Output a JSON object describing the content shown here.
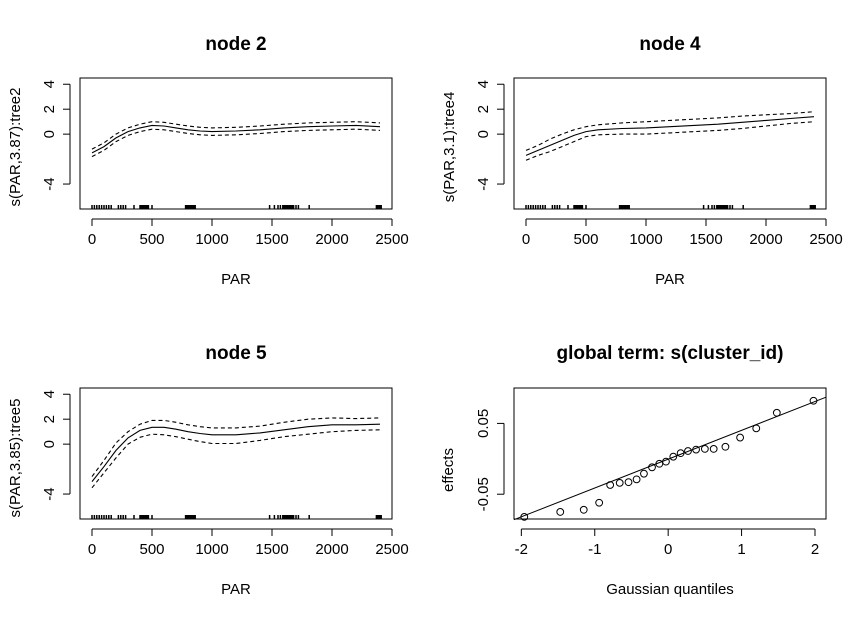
{
  "chart_data": [
    {
      "type": "line",
      "title": "node 2",
      "xlabel": "PAR",
      "ylabel": "s(PAR,3.87):tree2",
      "xlim": [
        -100,
        2500
      ],
      "ylim": [
        -6,
        4.5
      ],
      "xticks": [
        "0",
        "500",
        "1000",
        "1500",
        "2000",
        "2500"
      ],
      "yticks": [
        "-4",
        "0",
        "2",
        "4"
      ],
      "grid": false,
      "series": [
        {
          "style": "solid",
          "x": [
            0,
            100,
            200,
            300,
            400,
            500,
            600,
            700,
            800,
            900,
            1000,
            1200,
            1400,
            1600,
            1800,
            2000,
            2200,
            2400
          ],
          "values": [
            -1.5,
            -1.0,
            -0.3,
            0.2,
            0.5,
            0.7,
            0.65,
            0.5,
            0.35,
            0.25,
            0.2,
            0.25,
            0.35,
            0.5,
            0.6,
            0.65,
            0.7,
            0.6
          ]
        },
        {
          "style": "dashed",
          "x": [
            0,
            100,
            200,
            300,
            400,
            500,
            600,
            700,
            800,
            900,
            1000,
            1200,
            1400,
            1600,
            1800,
            2000,
            2200,
            2400
          ],
          "values": [
            -1.2,
            -0.7,
            0.0,
            0.5,
            0.8,
            1.0,
            0.95,
            0.8,
            0.65,
            0.55,
            0.5,
            0.55,
            0.65,
            0.8,
            0.9,
            0.95,
            1.0,
            0.9
          ]
        },
        {
          "style": "dashed",
          "x": [
            0,
            100,
            200,
            300,
            400,
            500,
            600,
            700,
            800,
            900,
            1000,
            1200,
            1400,
            1600,
            1800,
            2000,
            2200,
            2400
          ],
          "values": [
            -1.8,
            -1.3,
            -0.6,
            -0.1,
            0.2,
            0.4,
            0.35,
            0.2,
            0.05,
            -0.05,
            -0.1,
            -0.05,
            0.05,
            0.2,
            0.3,
            0.35,
            0.4,
            0.3
          ]
        }
      ],
      "rug": [
        0,
        20,
        40,
        60,
        80,
        100,
        120,
        140,
        160,
        220,
        240,
        260,
        280,
        350,
        400,
        410,
        420,
        430,
        440,
        450,
        460,
        470,
        500,
        780,
        790,
        800,
        810,
        820,
        830,
        840,
        850,
        860,
        1480,
        1520,
        1550,
        1570,
        1590,
        1600,
        1610,
        1620,
        1630,
        1640,
        1650,
        1660,
        1670,
        1680,
        1700,
        1720,
        1810,
        2370,
        2380,
        2390,
        2400,
        2410
      ]
    },
    {
      "type": "line",
      "title": "node 4",
      "xlabel": "PAR",
      "ylabel": "s(PAR,3.1):tree4",
      "xlim": [
        -100,
        2500
      ],
      "ylim": [
        -6,
        4.5
      ],
      "xticks": [
        "0",
        "500",
        "1000",
        "1500",
        "2000",
        "2500"
      ],
      "yticks": [
        "-4",
        "0",
        "2",
        "4"
      ],
      "grid": false,
      "series": [
        {
          "style": "solid",
          "x": [
            0,
            100,
            200,
            300,
            400,
            500,
            600,
            800,
            1000,
            1200,
            1400,
            1600,
            1800,
            2000,
            2200,
            2400
          ],
          "values": [
            -1.7,
            -1.3,
            -0.9,
            -0.5,
            -0.1,
            0.2,
            0.35,
            0.45,
            0.5,
            0.6,
            0.7,
            0.8,
            0.95,
            1.1,
            1.25,
            1.4
          ]
        },
        {
          "style": "dashed",
          "x": [
            0,
            100,
            200,
            300,
            400,
            500,
            600,
            800,
            1000,
            1200,
            1400,
            1600,
            1800,
            2000,
            2200,
            2400
          ],
          "values": [
            -1.3,
            -0.9,
            -0.4,
            0.0,
            0.35,
            0.6,
            0.75,
            0.9,
            1.0,
            1.1,
            1.2,
            1.3,
            1.45,
            1.55,
            1.65,
            1.8
          ]
        },
        {
          "style": "dashed",
          "x": [
            0,
            100,
            200,
            300,
            400,
            500,
            600,
            800,
            1000,
            1200,
            1400,
            1600,
            1800,
            2000,
            2200,
            2400
          ],
          "values": [
            -2.1,
            -1.7,
            -1.4,
            -1.0,
            -0.6,
            -0.2,
            -0.05,
            0.0,
            0.0,
            0.1,
            0.2,
            0.3,
            0.45,
            0.65,
            0.85,
            1.0
          ]
        }
      ],
      "rug": [
        0,
        20,
        40,
        60,
        80,
        100,
        120,
        140,
        160,
        220,
        240,
        260,
        280,
        350,
        400,
        410,
        420,
        430,
        440,
        450,
        460,
        470,
        500,
        780,
        790,
        800,
        810,
        820,
        830,
        840,
        850,
        860,
        1480,
        1520,
        1550,
        1570,
        1590,
        1600,
        1610,
        1620,
        1630,
        1640,
        1650,
        1660,
        1670,
        1680,
        1700,
        1720,
        1810,
        2370,
        2380,
        2390,
        2400,
        2410
      ]
    },
    {
      "type": "line",
      "title": "node 5",
      "xlabel": "PAR",
      "ylabel": "s(PAR,3.85):tree5",
      "xlim": [
        -100,
        2500
      ],
      "ylim": [
        -6,
        4.5
      ],
      "xticks": [
        "0",
        "500",
        "1000",
        "1500",
        "2000",
        "2500"
      ],
      "yticks": [
        "-4",
        "0",
        "2",
        "4"
      ],
      "grid": false,
      "series": [
        {
          "style": "solid",
          "x": [
            0,
            100,
            200,
            300,
            400,
            500,
            600,
            700,
            800,
            900,
            1000,
            1200,
            1400,
            1600,
            1800,
            2000,
            2200,
            2400
          ],
          "values": [
            -3.0,
            -1.8,
            -0.5,
            0.5,
            1.1,
            1.35,
            1.35,
            1.2,
            1.0,
            0.85,
            0.75,
            0.75,
            0.9,
            1.15,
            1.4,
            1.55,
            1.55,
            1.6
          ]
        },
        {
          "style": "dashed",
          "x": [
            0,
            100,
            200,
            300,
            400,
            500,
            600,
            700,
            800,
            900,
            1000,
            1200,
            1400,
            1600,
            1800,
            2000,
            2200,
            2400
          ],
          "values": [
            -2.6,
            -1.3,
            0.1,
            1.0,
            1.6,
            1.9,
            1.9,
            1.75,
            1.55,
            1.4,
            1.3,
            1.3,
            1.45,
            1.75,
            2.0,
            2.1,
            2.05,
            2.1
          ]
        },
        {
          "style": "dashed",
          "x": [
            0,
            100,
            200,
            300,
            400,
            500,
            600,
            700,
            800,
            900,
            1000,
            1200,
            1400,
            1600,
            1800,
            2000,
            2200,
            2400
          ],
          "values": [
            -3.5,
            -2.3,
            -1.1,
            0.0,
            0.55,
            0.8,
            0.75,
            0.6,
            0.4,
            0.2,
            0.05,
            0.05,
            0.3,
            0.6,
            0.8,
            1.0,
            1.1,
            1.15
          ]
        }
      ],
      "rug": [
        0,
        20,
        40,
        60,
        80,
        100,
        120,
        140,
        160,
        220,
        240,
        260,
        280,
        350,
        400,
        410,
        420,
        430,
        440,
        450,
        460,
        470,
        500,
        780,
        790,
        800,
        810,
        820,
        830,
        840,
        850,
        860,
        1480,
        1520,
        1550,
        1570,
        1590,
        1600,
        1610,
        1620,
        1630,
        1640,
        1650,
        1660,
        1670,
        1680,
        1700,
        1720,
        1810,
        2370,
        2380,
        2390,
        2400,
        2410
      ]
    },
    {
      "type": "scatter",
      "title": "global term: s(cluster_id)",
      "xlabel": "Gaussian quantiles",
      "ylabel": "effects",
      "xlim": [
        -2.1,
        2.15
      ],
      "ylim": [
        -0.085,
        0.1
      ],
      "xticks": [
        "-2",
        "-1",
        "0",
        "1",
        "2"
      ],
      "yticks": [
        "-0.05",
        "0.05"
      ],
      "grid": false,
      "points": {
        "x": [
          -1.96,
          -1.47,
          -1.15,
          -0.94,
          -0.79,
          -0.66,
          -0.54,
          -0.43,
          -0.33,
          -0.22,
          -0.12,
          -0.03,
          0.07,
          0.17,
          0.27,
          0.38,
          0.5,
          0.62,
          0.78,
          0.98,
          1.2,
          1.48,
          1.98
        ],
        "values": [
          -0.082,
          -0.075,
          -0.072,
          -0.062,
          -0.037,
          -0.034,
          -0.033,
          -0.029,
          -0.021,
          -0.012,
          -0.007,
          -0.004,
          0.003,
          0.008,
          0.011,
          0.013,
          0.014,
          0.014,
          0.017,
          0.03,
          0.043,
          0.065,
          0.082
        ]
      },
      "reference_line": {
        "x": [
          -2.1,
          2.15
        ],
        "values": [
          -0.086,
          0.087
        ]
      }
    }
  ]
}
